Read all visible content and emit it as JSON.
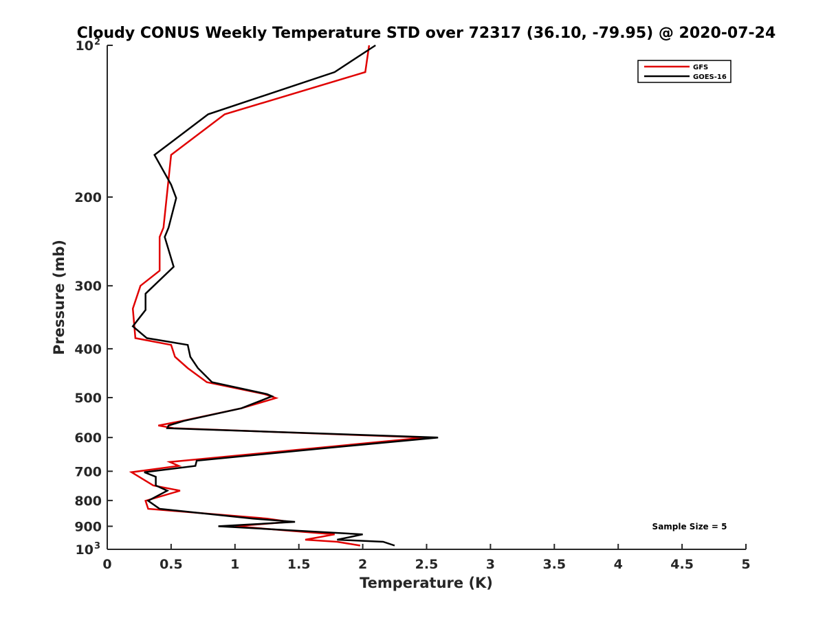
{
  "chart_data": {
    "type": "line",
    "title": "Cloudy CONUS Weekly Temperature STD over 72317 (36.10, -79.95) @ 2020-07-24",
    "xlabel": "Temperature (K)",
    "ylabel": "Pressure (mb)",
    "xlim": [
      0,
      5
    ],
    "ylim": [
      100,
      1000
    ],
    "y_scale": "log",
    "y_reversed": true,
    "x_ticks": [
      "0",
      "0.5",
      "1",
      "1.5",
      "2",
      "2.5",
      "3",
      "3.5",
      "4",
      "4.5",
      "5"
    ],
    "y_ticks": [
      {
        "value": 100,
        "base": "10",
        "exp": "2"
      },
      {
        "value": 200,
        "label": "200"
      },
      {
        "value": 300,
        "label": "300"
      },
      {
        "value": 400,
        "label": "400"
      },
      {
        "value": 500,
        "label": "500"
      },
      {
        "value": 600,
        "label": "600"
      },
      {
        "value": 700,
        "label": "700"
      },
      {
        "value": 800,
        "label": "800"
      },
      {
        "value": 900,
        "label": "900"
      },
      {
        "value": 1000,
        "base": "10",
        "exp": "3"
      }
    ],
    "grid": false,
    "legend_position": "top-right",
    "annotation": "Sample Size = 5",
    "series": [
      {
        "name": "GFS",
        "color": "#e00000",
        "points": [
          [
            2.05,
            100
          ],
          [
            2.02,
            113
          ],
          [
            0.92,
            137
          ],
          [
            0.5,
            165
          ],
          [
            0.44,
            230
          ],
          [
            0.41,
            240
          ],
          [
            0.41,
            280
          ],
          [
            0.26,
            300
          ],
          [
            0.2,
            333
          ],
          [
            0.22,
            381
          ],
          [
            0.5,
            393
          ],
          [
            0.53,
            415
          ],
          [
            0.63,
            437
          ],
          [
            0.78,
            466
          ],
          [
            1.23,
            492
          ],
          [
            1.32,
            501
          ],
          [
            1.05,
            525
          ],
          [
            0.59,
            556
          ],
          [
            0.4,
            568
          ],
          [
            0.52,
            575
          ],
          [
            2.49,
            600
          ],
          [
            1.62,
            630
          ],
          [
            0.49,
            671
          ],
          [
            0.56,
            683
          ],
          [
            0.19,
            703
          ],
          [
            0.25,
            718
          ],
          [
            0.36,
            747
          ],
          [
            0.57,
            765
          ],
          [
            0.3,
            801
          ],
          [
            0.32,
            831
          ],
          [
            1.25,
            869
          ],
          [
            1.43,
            882
          ],
          [
            1.0,
            900
          ],
          [
            1.78,
            934
          ],
          [
            1.55,
            957
          ],
          [
            1.8,
            966
          ],
          [
            1.98,
            983
          ]
        ]
      },
      {
        "name": "GOES-16",
        "color": "#000000",
        "points": [
          [
            2.1,
            100
          ],
          [
            1.78,
            113
          ],
          [
            0.79,
            137
          ],
          [
            0.37,
            165
          ],
          [
            0.5,
            189
          ],
          [
            0.54,
            201
          ],
          [
            0.48,
            230
          ],
          [
            0.45,
            240
          ],
          [
            0.52,
            275
          ],
          [
            0.3,
            311
          ],
          [
            0.3,
            335
          ],
          [
            0.2,
            361
          ],
          [
            0.31,
            381
          ],
          [
            0.63,
            393
          ],
          [
            0.65,
            415
          ],
          [
            0.71,
            437
          ],
          [
            0.82,
            466
          ],
          [
            1.25,
            492
          ],
          [
            1.29,
            497
          ],
          [
            1.05,
            525
          ],
          [
            0.6,
            556
          ],
          [
            0.48,
            568
          ],
          [
            0.47,
            575
          ],
          [
            2.59,
            600
          ],
          [
            1.7,
            630
          ],
          [
            0.7,
            667
          ],
          [
            0.69,
            683
          ],
          [
            0.29,
            703
          ],
          [
            0.38,
            718
          ],
          [
            0.38,
            747
          ],
          [
            0.47,
            765
          ],
          [
            0.32,
            801
          ],
          [
            0.41,
            831
          ],
          [
            1.14,
            869
          ],
          [
            1.47,
            882
          ],
          [
            0.87,
            900
          ],
          [
            2.0,
            934
          ],
          [
            1.8,
            957
          ],
          [
            2.16,
            966
          ],
          [
            2.25,
            983
          ]
        ]
      }
    ]
  }
}
